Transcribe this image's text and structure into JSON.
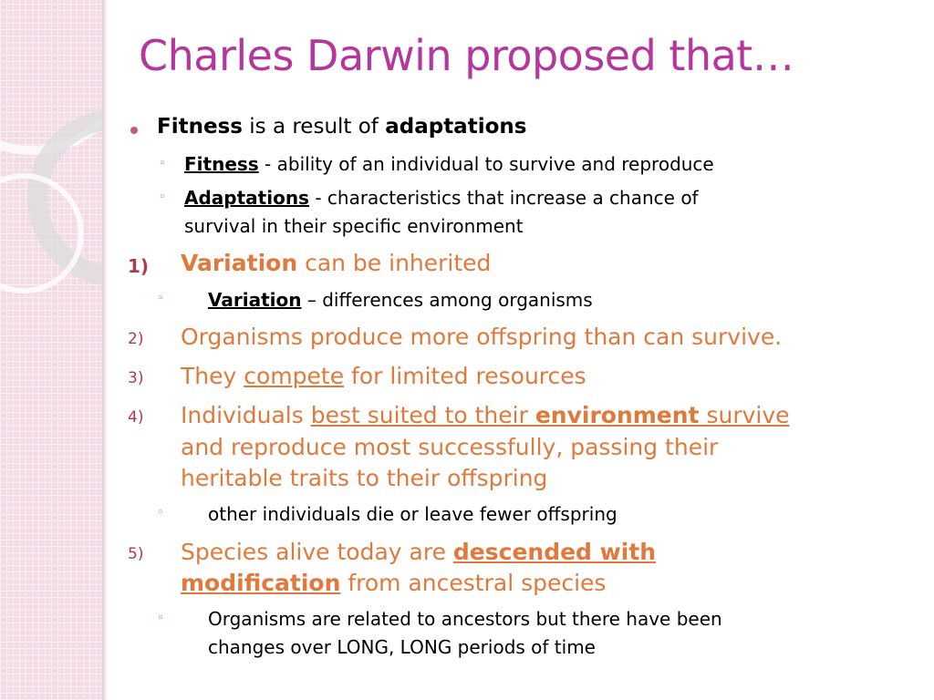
{
  "title": "Charles Darwin proposed that…",
  "b1": {
    "t1": "Fitness",
    "t2": " is a result of ",
    "t3": "adaptations"
  },
  "s1": {
    "t1": "Fitness",
    "t2": " - ability of an individual to survive and reproduce"
  },
  "s2": {
    "t1": "Adaptations",
    "t2": " - characteristics that increase a chance of",
    "t3": "survival in their specific environment"
  },
  "n1": {
    "label": "1)",
    "t1": "Variation",
    "t2": " can be inherited"
  },
  "s3": {
    "t1": "Variation",
    "t2": " – differences among organisms"
  },
  "n2": {
    "label": "2)",
    "t1": "Organisms produce more offspring than can survive."
  },
  "n3": {
    "label": "3)",
    "t1": "They ",
    "t2": "compete",
    "t3": " for limited resources"
  },
  "n4": {
    "label": "4)",
    "t1": "Individuals ",
    "t2": "best suited to their ",
    "t3": "environment",
    "t4": " survive",
    "t5": "and reproduce most successfully, passing their",
    "t6": "heritable traits to their offspring"
  },
  "s4": {
    "t1": "other individuals die or leave fewer offspring"
  },
  "n5": {
    "label": "5)",
    "t1": "Species alive today are ",
    "t2": "descended with",
    "t3": "modification",
    "t4": " from ancestral species"
  },
  "s5": {
    "t1": "Organisms are related to ancestors but there have been",
    "t2": "changes over LONG, LONG periods of time"
  },
  "glyphs": {
    "circle": "◦"
  }
}
